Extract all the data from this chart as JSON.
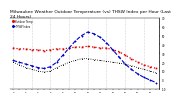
{
  "title": "Milwaukee Weather Outdoor Temperature (vs) THSW Index per Hour (Last 24 Hours)",
  "title_fontsize": 3.2,
  "background_color": "#ffffff",
  "hours": [
    0,
    1,
    2,
    3,
    4,
    5,
    6,
    7,
    8,
    9,
    10,
    11,
    12,
    13,
    14,
    15,
    16,
    17,
    18,
    19,
    20,
    21,
    22,
    23
  ],
  "outdoor_temp": [
    36,
    35,
    35,
    34,
    34,
    33,
    34,
    35,
    35,
    36,
    37,
    37,
    38,
    37,
    36,
    36,
    34,
    32,
    28,
    24,
    20,
    17,
    15,
    13
  ],
  "thsw_index": [
    22,
    20,
    18,
    16,
    14,
    13,
    15,
    20,
    28,
    36,
    44,
    50,
    54,
    52,
    48,
    42,
    34,
    26,
    18,
    12,
    7,
    3,
    0,
    -3
  ],
  "wind_chill": [
    20,
    17,
    14,
    12,
    10,
    9,
    10,
    14,
    17,
    20,
    22,
    24,
    24,
    23,
    22,
    21,
    20,
    19,
    18,
    16,
    14,
    12,
    10,
    8
  ],
  "ylim": [
    -10,
    70
  ],
  "ytick_vals": [
    70,
    60,
    50,
    40,
    30,
    20,
    10,
    0,
    -10
  ],
  "ytick_labels": [
    "70",
    "60",
    "50",
    "40",
    "30",
    "20",
    "10",
    "0",
    "-10"
  ],
  "temp_color": "#dd0000",
  "thsw_color": "#0000cc",
  "wind_color": "#000000",
  "grid_color": "#999999",
  "legend_temp": "Outdoor Temp",
  "legend_thsw": "THSW Index"
}
